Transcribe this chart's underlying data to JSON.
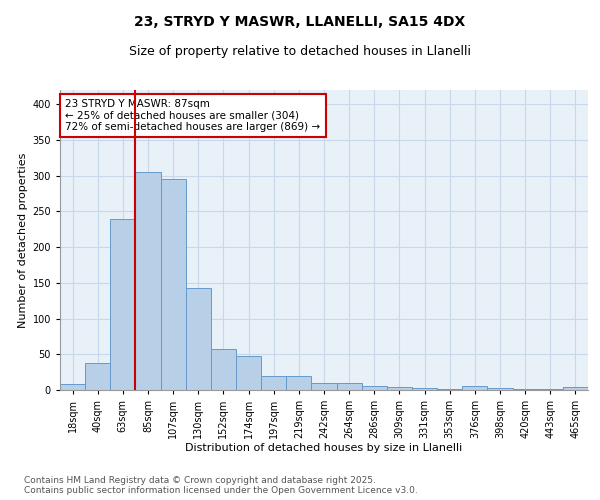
{
  "title_line1": "23, STRYD Y MASWR, LLANELLI, SA15 4DX",
  "title_line2": "Size of property relative to detached houses in Llanelli",
  "xlabel": "Distribution of detached houses by size in Llanelli",
  "ylabel": "Number of detached properties",
  "categories": [
    "18sqm",
    "40sqm",
    "63sqm",
    "85sqm",
    "107sqm",
    "130sqm",
    "152sqm",
    "174sqm",
    "197sqm",
    "219sqm",
    "242sqm",
    "264sqm",
    "286sqm",
    "309sqm",
    "331sqm",
    "353sqm",
    "376sqm",
    "398sqm",
    "420sqm",
    "443sqm",
    "465sqm"
  ],
  "values": [
    8,
    38,
    240,
    305,
    295,
    143,
    57,
    47,
    19,
    20,
    10,
    10,
    6,
    4,
    3,
    2,
    5,
    3,
    1,
    1,
    4
  ],
  "bar_color": "#b8cfe8",
  "bar_edge_color": "#6699cc",
  "highlight_line_color": "#cc0000",
  "annotation_text": "23 STRYD Y MASWR: 87sqm\n← 25% of detached houses are smaller (304)\n72% of semi-detached houses are larger (869) →",
  "annotation_box_color": "#ffffff",
  "annotation_box_edge": "#cc0000",
  "ylim": [
    0,
    420
  ],
  "yticks": [
    0,
    50,
    100,
    150,
    200,
    250,
    300,
    350,
    400
  ],
  "grid_color": "#c8d8ea",
  "background_color": "#e8f0f8",
  "footer_text": "Contains HM Land Registry data © Crown copyright and database right 2025.\nContains public sector information licensed under the Open Government Licence v3.0.",
  "title_fontsize": 10,
  "subtitle_fontsize": 9,
  "axis_label_fontsize": 8,
  "tick_fontsize": 7,
  "annotation_fontsize": 7.5,
  "footer_fontsize": 6.5
}
